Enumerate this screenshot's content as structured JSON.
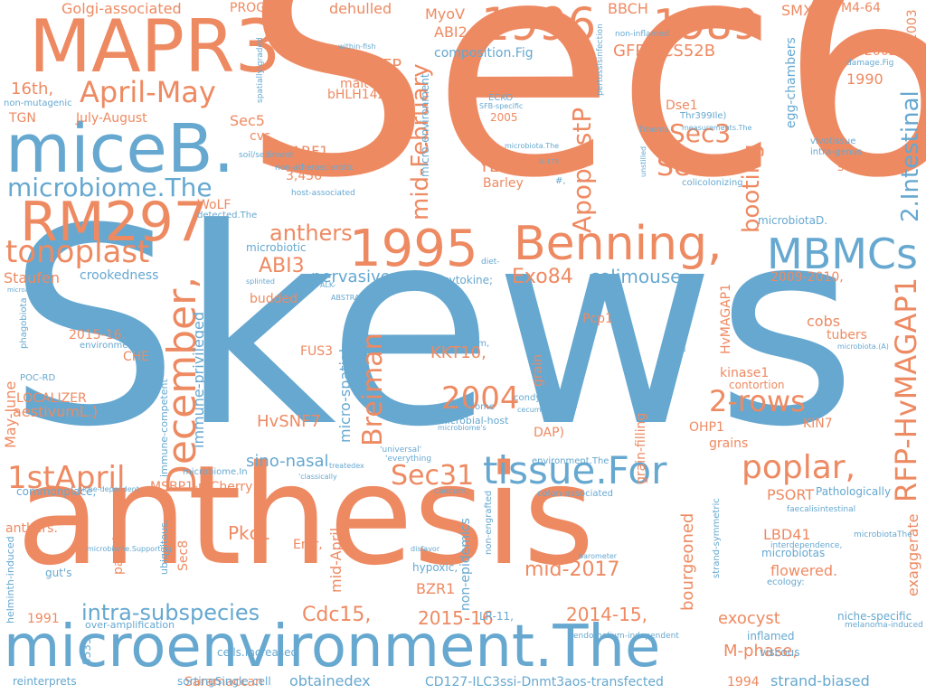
{
  "palette": {
    "orange": "#ee8a62",
    "blue": "#66a8d0",
    "background": "#ffffff"
  },
  "words": [
    {
      "text": "Sec6",
      "color": "orange"
    },
    {
      "text": "Skews",
      "color": "blue"
    },
    {
      "text": "anthesis",
      "color": "orange"
    },
    {
      "text": "microenvironment.The",
      "color": "blue"
    },
    {
      "text": "MAPR3",
      "color": "orange"
    },
    {
      "text": "miceB.",
      "color": "blue"
    },
    {
      "text": "RM297",
      "color": "orange"
    },
    {
      "text": "1995",
      "color": "orange"
    },
    {
      "text": "Benning,",
      "color": "orange"
    },
    {
      "text": "1996",
      "color": "orange"
    },
    {
      "text": "1989",
      "color": "orange"
    },
    {
      "text": "MBMCs",
      "color": "blue"
    },
    {
      "text": "tissue.For",
      "color": "blue"
    },
    {
      "text": "poplar,",
      "color": "orange"
    },
    {
      "text": "December,",
      "color": "orange"
    },
    {
      "text": "RFP-HvMAGAP1",
      "color": "orange"
    },
    {
      "text": "2.Intestinal",
      "color": "blue"
    },
    {
      "text": "microbiome.The",
      "color": "blue"
    },
    {
      "text": "April-May",
      "color": "orange"
    },
    {
      "text": "tonoplast",
      "color": "orange"
    },
    {
      "text": "2004",
      "color": "orange"
    },
    {
      "text": "2-rows",
      "color": "orange"
    },
    {
      "text": "1stApril",
      "color": "orange"
    },
    {
      "text": "Sec31",
      "color": "orange"
    },
    {
      "text": "Breiman",
      "color": "orange"
    },
    {
      "text": "mid-February",
      "color": "orange"
    },
    {
      "text": "ApoplastP",
      "color": "orange"
    },
    {
      "text": "booting",
      "color": "orange"
    },
    {
      "text": "Sec4",
      "color": "orange"
    },
    {
      "text": "Sec3",
      "color": "orange"
    },
    {
      "text": "intra-subspecies",
      "color": "blue"
    },
    {
      "text": "anthers",
      "color": "orange"
    },
    {
      "text": "ABI3",
      "color": "orange"
    },
    {
      "text": "mid-2017",
      "color": "orange"
    },
    {
      "text": "colimouse",
      "color": "blue"
    },
    {
      "text": "Exo84",
      "color": "orange"
    },
    {
      "text": "pervasiveness",
      "color": "blue"
    },
    {
      "text": "KKT10,",
      "color": "orange"
    },
    {
      "text": "HvSNF7",
      "color": "orange"
    },
    {
      "text": "sino-nasal",
      "color": "blue"
    },
    {
      "text": "Pkc1",
      "color": "orange"
    },
    {
      "text": "Cdc15,",
      "color": "orange"
    },
    {
      "text": "2015-16",
      "color": "orange"
    },
    {
      "text": "2014-15,",
      "color": "orange"
    },
    {
      "text": "BZR1",
      "color": "orange"
    },
    {
      "text": "exocyst",
      "color": "orange"
    },
    {
      "text": "M-phase,",
      "color": "orange"
    },
    {
      "text": "obtainedex",
      "color": "blue"
    },
    {
      "text": "strand-biased",
      "color": "blue"
    },
    {
      "text": "CD127-ILC3ssi-Dnmt3aos-transfected",
      "color": "blue"
    },
    {
      "text": "Saramaccan",
      "color": "orange"
    },
    {
      "text": "GFP-CCS52B",
      "color": "orange"
    },
    {
      "text": "Boi1-GFP",
      "color": "orange"
    },
    {
      "text": "ABI2,",
      "color": "orange"
    },
    {
      "text": "MyoV",
      "color": "orange"
    },
    {
      "text": "BBCH",
      "color": "orange"
    },
    {
      "text": "SMXL5",
      "color": "orange"
    },
    {
      "text": "FM4-64",
      "color": "orange"
    },
    {
      "text": "2003",
      "color": "orange"
    },
    {
      "text": "Golgi-associated",
      "color": "orange"
    },
    {
      "text": "PROG-2-5",
      "color": "orange"
    },
    {
      "text": "dehulled",
      "color": "orange"
    },
    {
      "text": "composition.Fig",
      "color": "blue"
    },
    {
      "text": "malted",
      "color": "orange"
    },
    {
      "text": "bHLH142",
      "color": "orange"
    },
    {
      "text": "16th,",
      "color": "orange"
    },
    {
      "text": "TGN",
      "color": "orange"
    },
    {
      "text": "July-August",
      "color": "orange"
    },
    {
      "text": "Sec5",
      "color": "orange"
    },
    {
      "text": "cvs.",
      "color": "orange"
    },
    {
      "text": "ARF1,",
      "color": "orange"
    },
    {
      "text": "3,456",
      "color": "orange"
    },
    {
      "text": "YLoc",
      "color": "orange"
    },
    {
      "text": "Barley",
      "color": "orange"
    },
    {
      "text": "2005",
      "color": "orange"
    },
    {
      "text": "Dse1",
      "color": "orange"
    },
    {
      "text": "1990",
      "color": "orange"
    },
    {
      "text": "2002",
      "color": "orange"
    },
    {
      "text": "sowing.",
      "color": "orange"
    },
    {
      "text": "WoLF",
      "color": "orange"
    },
    {
      "text": "Staufen",
      "color": "orange"
    },
    {
      "text": "crookedness",
      "color": "blue"
    },
    {
      "text": "budded",
      "color": "orange"
    },
    {
      "text": "2015-16.",
      "color": "orange"
    },
    {
      "text": "CHE",
      "color": "orange"
    },
    {
      "text": "LOCALIZER",
      "color": "orange"
    },
    {
      "text": "aestivumL.)",
      "color": "orange"
    },
    {
      "text": "May-June",
      "color": "orange"
    },
    {
      "text": "FUS3",
      "color": "orange"
    },
    {
      "text": "Pcp1",
      "color": "orange"
    },
    {
      "text": "HvMAGAP1",
      "color": "orange"
    },
    {
      "text": "cobs",
      "color": "orange"
    },
    {
      "text": "tubers",
      "color": "orange"
    },
    {
      "text": "kinase1",
      "color": "orange"
    },
    {
      "text": "contortion",
      "color": "orange"
    },
    {
      "text": "OHP1",
      "color": "orange"
    },
    {
      "text": "KIN7",
      "color": "orange"
    },
    {
      "text": "grains",
      "color": "orange"
    },
    {
      "text": "PSORT",
      "color": "orange"
    },
    {
      "text": "2009-2010,",
      "color": "orange"
    },
    {
      "text": "DAP)",
      "color": "orange"
    },
    {
      "text": "MSBP1-mCherry",
      "color": "orange"
    },
    {
      "text": "Sec8",
      "color": "orange"
    },
    {
      "text": "panicles",
      "color": "orange"
    },
    {
      "text": "mid-April.",
      "color": "orange"
    },
    {
      "text": "Emr,",
      "color": "orange"
    },
    {
      "text": "bourgeoned",
      "color": "orange"
    },
    {
      "text": "LBD41",
      "color": "orange"
    },
    {
      "text": "flowered.",
      "color": "orange"
    },
    {
      "text": "exaggerate",
      "color": "orange"
    },
    {
      "text": "1994",
      "color": "orange"
    },
    {
      "text": "1991",
      "color": "orange"
    },
    {
      "text": "anthers.",
      "color": "orange"
    },
    {
      "text": "grain",
      "color": "orange"
    },
    {
      "text": "grain-filling",
      "color": "orange"
    },
    {
      "text": "immune-privileged",
      "color": "blue"
    },
    {
      "text": "micro-spatial",
      "color": "blue"
    },
    {
      "text": "non-epidemics",
      "color": "blue"
    },
    {
      "text": "micro-environment",
      "color": "blue"
    },
    {
      "text": "egg-chambers",
      "color": "blue"
    },
    {
      "text": "microbiotaD.",
      "color": "blue"
    },
    {
      "text": "Pathologically",
      "color": "blue"
    },
    {
      "text": "microbiotas",
      "color": "blue"
    },
    {
      "text": "niche-specific",
      "color": "blue"
    },
    {
      "text": "viscous",
      "color": "blue"
    },
    {
      "text": "inflamed",
      "color": "blue"
    },
    {
      "text": "LR-11,",
      "color": "blue"
    },
    {
      "text": "hypoxic,",
      "color": "blue"
    },
    {
      "text": "cytokine;",
      "color": "blue"
    },
    {
      "text": "microbiotic",
      "color": "blue"
    },
    {
      "text": "gut's",
      "color": "blue"
    },
    {
      "text": "commonplace,",
      "color": "blue"
    },
    {
      "text": "cells.Increased",
      "color": "blue"
    },
    {
      "text": "sortingSingle-cell",
      "color": "blue"
    },
    {
      "text": "over-amplification",
      "color": "blue"
    },
    {
      "text": "reinterprets",
      "color": "blue"
    },
    {
      "text": "8533",
      "color": "blue"
    },
    {
      "text": "helminth-induced",
      "color": "blue"
    },
    {
      "text": "ubiquitous,",
      "color": "blue"
    },
    {
      "text": "immune-competent",
      "color": "blue"
    },
    {
      "text": "phagobiota",
      "color": "blue"
    },
    {
      "text": "POC-RD",
      "color": "blue"
    },
    {
      "text": "environment.Our",
      "color": "blue"
    },
    {
      "text": "micro-biome",
      "color": "blue"
    },
    {
      "text": "microbial-host",
      "color": "blue"
    },
    {
      "text": "condyloma",
      "color": "blue"
    },
    {
      "text": "peritoneum,",
      "color": "blue"
    },
    {
      "text": "environment.The",
      "color": "blue"
    },
    {
      "text": "'universal'",
      "color": "blue"
    },
    {
      "text": "'everything",
      "color": "blue"
    },
    {
      "text": "colon-associated",
      "color": "blue"
    },
    {
      "text": "caecum,",
      "color": "blue"
    },
    {
      "text": "strand-symmetric",
      "color": "blue"
    },
    {
      "text": "faecalisintestinal",
      "color": "blue"
    },
    {
      "text": "interdependence,",
      "color": "blue"
    },
    {
      "text": "ecology:",
      "color": "blue"
    },
    {
      "text": "melanoma-induced",
      "color": "blue"
    },
    {
      "text": "endothelium-independent",
      "color": "blue"
    },
    {
      "text": "microbiotaThe",
      "color": "blue"
    },
    {
      "text": "colicolonizing",
      "color": "blue"
    },
    {
      "text": "vivotissue",
      "color": "blue"
    },
    {
      "text": "intra-genus",
      "color": "blue"
    },
    {
      "text": "Thr399Ile)",
      "color": "blue"
    },
    {
      "text": "Tmems",
      "color": "blue"
    },
    {
      "text": "ECKO",
      "color": "blue"
    },
    {
      "text": "SFB-specific",
      "color": "blue"
    },
    {
      "text": "non-atherosclerotic",
      "color": "blue"
    },
    {
      "text": "soil/sediment",
      "color": "blue"
    },
    {
      "text": "host-associated",
      "color": "blue"
    },
    {
      "text": "non-mutagenic",
      "color": "blue"
    },
    {
      "text": "within-fish",
      "color": "blue"
    },
    {
      "text": "spatially-graded",
      "color": "blue"
    },
    {
      "text": "non-inflamed",
      "color": "blue"
    },
    {
      "text": "pertussisinfection",
      "color": "blue"
    },
    {
      "text": "damage.Fig",
      "color": "blue"
    },
    {
      "text": "detected.The",
      "color": "blue"
    },
    {
      "text": "diet-",
      "color": "blue"
    },
    {
      "text": "ALK-",
      "color": "blue"
    },
    {
      "text": "ABSTRACTGut",
      "color": "blue"
    },
    {
      "text": "splinted",
      "color": "blue"
    },
    {
      "text": "microanatomy",
      "color": "blue"
    },
    {
      "text": "microbiome.In",
      "color": "blue"
    },
    {
      "text": "treatedex",
      "color": "blue"
    },
    {
      "text": "'classically",
      "color": "blue"
    },
    {
      "text": "niche-dependent",
      "color": "blue"
    },
    {
      "text": "microbiome.Supporting",
      "color": "blue"
    },
    {
      "text": "disfavor",
      "color": "blue"
    },
    {
      "text": "barometer",
      "color": "blue"
    },
    {
      "text": "microbiota.The",
      "color": "blue"
    },
    {
      "text": "IL-17R",
      "color": "blue"
    },
    {
      "text": "measurements.The",
      "color": "blue"
    },
    {
      "text": "unstilled",
      "color": "blue"
    },
    {
      "text": "time.Quantitative",
      "color": "blue"
    },
    {
      "text": "microbiota.(A)",
      "color": "blue"
    },
    {
      "text": "environment.In",
      "color": "blue"
    },
    {
      "text": "non-engrafted",
      "color": "blue"
    },
    {
      "text": "microbiome's",
      "color": "blue"
    },
    {
      "text": "cecum,",
      "color": "blue"
    },
    {
      "text": "#,",
      "color": "blue"
    }
  ]
}
